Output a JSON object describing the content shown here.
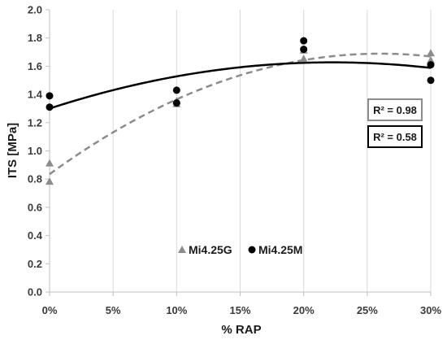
{
  "chart_data": {
    "type": "scatter",
    "xlabel": "% RAP",
    "ylabel": "ITS [MPa]",
    "xlim": [
      0,
      30
    ],
    "ylim": [
      0,
      2.0
    ],
    "x_ticks": [
      0,
      5,
      10,
      15,
      20,
      25,
      30
    ],
    "x_tick_labels": [
      "0%",
      "5%",
      "10%",
      "15%",
      "20%",
      "25%",
      "30%"
    ],
    "y_ticks": [
      0,
      0.2,
      0.4,
      0.6,
      0.8,
      1.0,
      1.2,
      1.4,
      1.6,
      1.8,
      2.0
    ],
    "y_tick_labels": [
      "0.0",
      "0.2",
      "0.4",
      "0.6",
      "0.8",
      "1.0",
      "1.2",
      "1.4",
      "1.6",
      "1.8",
      "2.0"
    ],
    "grid": "vertical",
    "legend_position": "bottom-center",
    "series": [
      {
        "name": "Mi4.25G",
        "marker": "triangle",
        "color": "#8c8c8c",
        "points": [
          [
            0,
            0.91
          ],
          [
            0,
            0.78
          ],
          [
            10,
            1.33
          ],
          [
            10,
            1.35
          ],
          [
            20,
            1.71
          ],
          [
            20,
            1.65
          ],
          [
            30,
            1.69
          ],
          [
            30,
            1.64
          ]
        ],
        "trendline": {
          "type": "polynomial",
          "coefficients": [
            0.835,
            0.0656,
            -0.00126
          ],
          "style": "dashed"
        }
      },
      {
        "name": "Mi4.25M",
        "marker": "circle",
        "color": "#000000",
        "points": [
          [
            0,
            1.39
          ],
          [
            0,
            1.31
          ],
          [
            10,
            1.43
          ],
          [
            10,
            1.34
          ],
          [
            20,
            1.78
          ],
          [
            20,
            1.72
          ],
          [
            30,
            1.61
          ],
          [
            30,
            1.5
          ]
        ],
        "trendline": {
          "type": "polynomial",
          "coefficients": [
            1.3,
            0.0294,
            -0.00066
          ],
          "style": "solid"
        }
      }
    ],
    "annotations": [
      {
        "text": "R² = 0.98",
        "box_color": "#8c8c8c"
      },
      {
        "text": "R² = 0.58",
        "box_color": "#000000"
      }
    ]
  }
}
